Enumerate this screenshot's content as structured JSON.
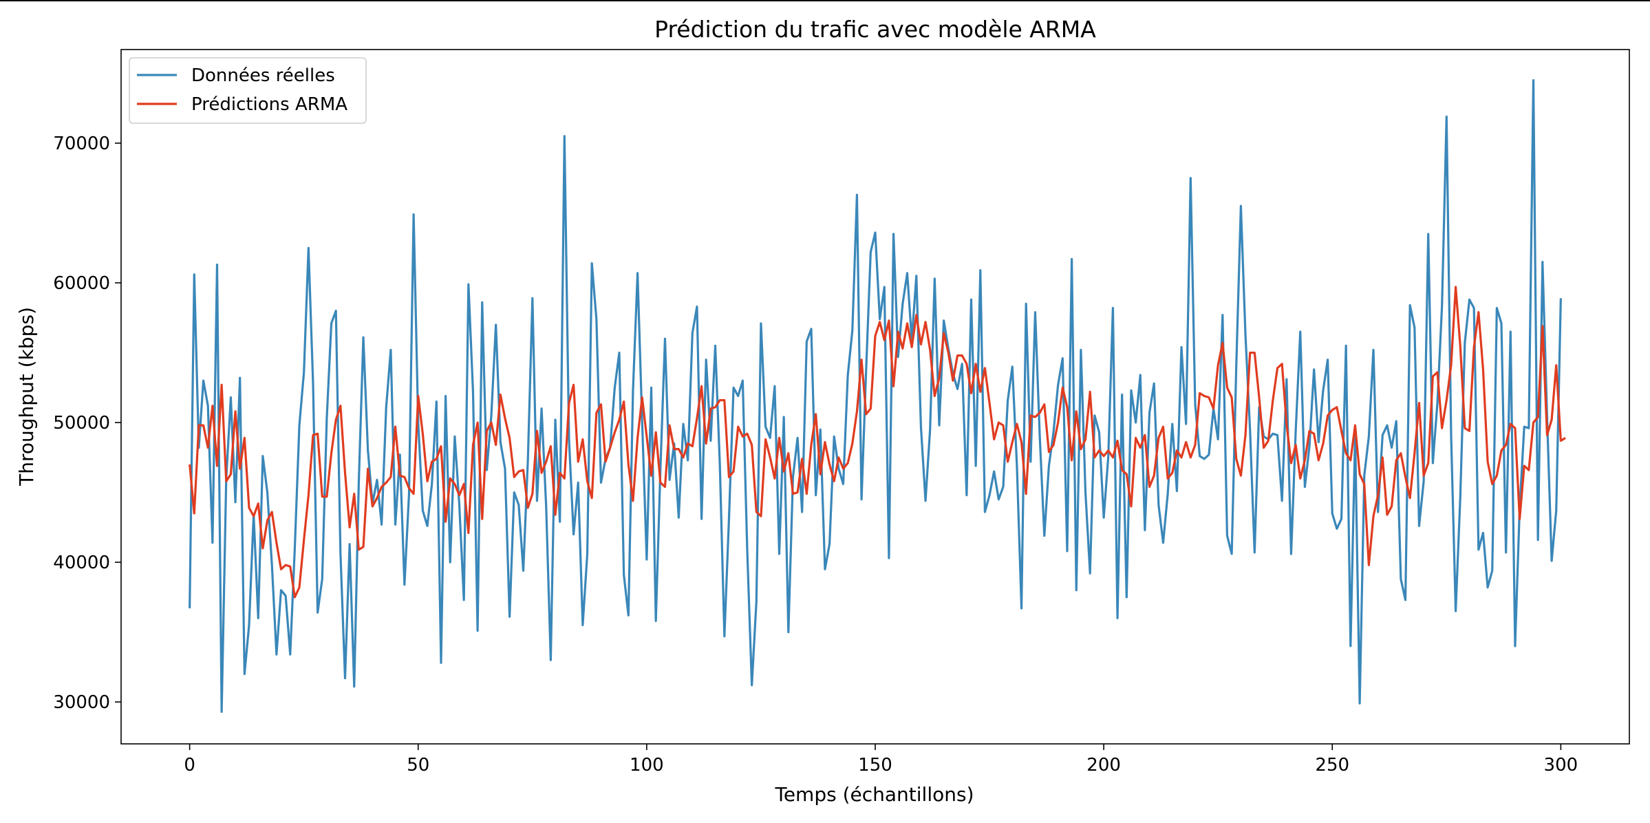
{
  "chart_data": {
    "type": "line",
    "title": "Prédiction du trafic avec modèle ARMA",
    "xlabel": "Temps (échantillons)",
    "ylabel": "Throughput (kbps)",
    "xlim": [
      -15,
      315
    ],
    "ylim": [
      27000,
      76700
    ],
    "x_ticks": [
      0,
      50,
      100,
      150,
      200,
      250,
      300
    ],
    "y_ticks": [
      30000,
      40000,
      50000,
      60000,
      70000
    ],
    "grid": false,
    "legend_position": "top-left",
    "series": [
      {
        "name": "Données réelles",
        "color": "#3a87b9",
        "values": [
          36700,
          60600,
          48200,
          53000,
          51200,
          41400,
          61300,
          29300,
          46000,
          51800,
          44300,
          53200,
          32000,
          35500,
          43400,
          36000,
          47600,
          45000,
          39800,
          33400,
          38000,
          37600,
          33400,
          41000,
          49800,
          53600,
          62500,
          52800,
          36400,
          38800,
          50300,
          57100,
          58000,
          40600,
          31700,
          41300,
          31100,
          45700,
          56100,
          48000,
          44200,
          45900,
          42700,
          51100,
          55200,
          42700,
          47700,
          38400,
          44900,
          64900,
          50000,
          43700,
          42600,
          45600,
          51500,
          32800,
          51900,
          40000,
          49000,
          44100,
          37300,
          59900,
          52200,
          35100,
          58600,
          46600,
          50500,
          57000,
          48600,
          46700,
          36100,
          45000,
          44100,
          39400,
          47300,
          58900,
          44400,
          51000,
          44000,
          33000,
          50200,
          42900,
          70500,
          48800,
          42000,
          45700,
          35500,
          40600,
          61400,
          57400,
          45700,
          47400,
          48200,
          52500,
          55000,
          39100,
          36200,
          52300,
          60700,
          50100,
          40200,
          52500,
          35800,
          46700,
          56000,
          45900,
          48500,
          43200,
          49900,
          47300,
          56400,
          58300,
          43100,
          54500,
          48700,
          55500,
          47000,
          34700,
          43100,
          52500,
          51900,
          53000,
          40800,
          31200,
          37200,
          57100,
          49700,
          48900,
          52600,
          40600,
          50400,
          35000,
          46100,
          48900,
          43600,
          55800,
          56700,
          44800,
          49500,
          39500,
          41300,
          49000,
          46700,
          45600,
          53400,
          56600,
          66300,
          44500,
          53700,
          62200,
          63600,
          57400,
          59700,
          40300,
          63500,
          54700,
          58500,
          60700,
          55900,
          60500,
          49700,
          44400,
          49500,
          60300,
          49800,
          57300,
          55300,
          53500,
          52400,
          54200,
          44800,
          58800,
          46900,
          60900,
          43600,
          44800,
          46500,
          44500,
          45400,
          51600,
          54000,
          46900,
          36700,
          58500,
          47200,
          57900,
          49000,
          41900,
          46900,
          49300,
          52700,
          54600,
          40800,
          61700,
          38000,
          55200,
          45000,
          39200,
          50500,
          49300,
          43200,
          47600,
          58200,
          36000,
          52000,
          37500,
          52300,
          50000,
          53400,
          42300,
          50700,
          52800,
          44100,
          41400,
          44900,
          49900,
          45100,
          55400,
          49900,
          67500,
          51300,
          47600,
          47400,
          47700,
          51000,
          48800,
          57700,
          41900,
          40600,
          54100,
          65500,
          56300,
          49500,
          40700,
          51100,
          49000,
          48800,
          49200,
          49100,
          44400,
          53100,
          40600,
          49400,
          56500,
          45400,
          48300,
          53800,
          48600,
          52300,
          54500,
          43500,
          42400,
          43100,
          55500,
          34000,
          49100,
          29900,
          46200,
          49000,
          55200,
          43600,
          49100,
          49800,
          48200,
          50100,
          38800,
          37300,
          58400,
          56800,
          42600,
          45800,
          63500,
          47100,
          51400,
          58300,
          71900,
          49100,
          36500,
          44600,
          55700,
          58800,
          58200,
          40900,
          42100,
          38200,
          39400,
          58200,
          57100,
          40700,
          56500,
          34000,
          43900,
          49700,
          49600,
          74500,
          41600,
          61500,
          50400,
          40100,
          43700,
          58900
        ]
      },
      {
        "name": "Prédictions ARMA",
        "color": "#e03c20",
        "values": [
          47000,
          43500,
          49800,
          49800,
          48200,
          51200,
          46900,
          52700,
          45800,
          46300,
          50800,
          46700,
          48900,
          43900,
          43300,
          44200,
          41000,
          43000,
          43600,
          41400,
          39500,
          39800,
          39700,
          37500,
          38200,
          41600,
          44800,
          49100,
          49200,
          44700,
          44700,
          47800,
          50200,
          51200,
          46400,
          42500,
          44900,
          40900,
          41100,
          46700,
          44000,
          44600,
          45400,
          45700,
          46100,
          49700,
          46200,
          46100,
          45300,
          44900,
          51900,
          49200,
          45800,
          47200,
          47400,
          48300,
          42900,
          46000,
          45600,
          44800,
          45600,
          42100,
          48400,
          50000,
          43100,
          49400,
          50000,
          48400,
          52000,
          50300,
          48900,
          46100,
          46500,
          46600,
          43900,
          44900,
          49400,
          46400,
          47200,
          48300,
          43400,
          46400,
          46000,
          51400,
          52700,
          47200,
          48800,
          45800,
          44600,
          50700,
          51300,
          47200,
          48200,
          49300,
          50200,
          51500,
          47000,
          44400,
          48900,
          51800,
          49000,
          46200,
          49300,
          45700,
          45400,
          49800,
          48100,
          48100,
          47500,
          48500,
          48300,
          50300,
          52600,
          48500,
          51000,
          51100,
          51600,
          51600,
          46100,
          46500,
          49700,
          49000,
          49200,
          48400,
          43600,
          43300,
          48800,
          47500,
          46000,
          48900,
          46500,
          47800,
          44900,
          45000,
          47400,
          44900,
          48400,
          50600,
          46300,
          48600,
          47000,
          45800,
          47500,
          46700,
          47100,
          48500,
          50800,
          54500,
          50600,
          51000,
          56200,
          57200,
          55900,
          57300,
          52600,
          56500,
          55300,
          57100,
          55400,
          57700,
          55600,
          57200,
          55200,
          51900,
          53200,
          56400,
          55000,
          53000,
          54800,
          54800,
          54200,
          52100,
          54200,
          52200,
          53900,
          51400,
          48800,
          50000,
          49800,
          47200,
          48600,
          49900,
          48600,
          44900,
          50500,
          50400,
          50700,
          51300,
          47900,
          48400,
          50000,
          52500,
          51100,
          47300,
          50800,
          48100,
          48800,
          52200,
          47500,
          48000,
          47600,
          48000,
          47500,
          48700,
          46600,
          46300,
          44000,
          48900,
          48200,
          49100,
          45400,
          46200,
          48900,
          49700,
          46000,
          46400,
          48000,
          47500,
          48600,
          47500,
          48400,
          52100,
          51900,
          51800,
          51000,
          54100,
          55700,
          52500,
          51800,
          47400,
          46200,
          49100,
          55000,
          55000,
          51800,
          48200,
          48700,
          51600,
          53900,
          54200,
          49900,
          47100,
          48400,
          46000,
          47300,
          49400,
          49200,
          47300,
          48500,
          50500,
          50900,
          51100,
          49400,
          47800,
          47300,
          49800,
          46300,
          45600,
          39800,
          43300,
          44800,
          47500,
          43400,
          44000,
          47300,
          47800,
          46100,
          44600,
          47800,
          51400,
          46200,
          47100,
          53300,
          53600,
          49600,
          51600,
          54100,
          59700,
          55500,
          49600,
          49400,
          55400,
          57900,
          53800,
          47200,
          45600,
          46200,
          48000,
          48400,
          49900,
          49600,
          43100,
          46900,
          46600,
          50000,
          50400,
          56900,
          49100,
          50200,
          54100,
          48700,
          48900
        ]
      }
    ]
  }
}
